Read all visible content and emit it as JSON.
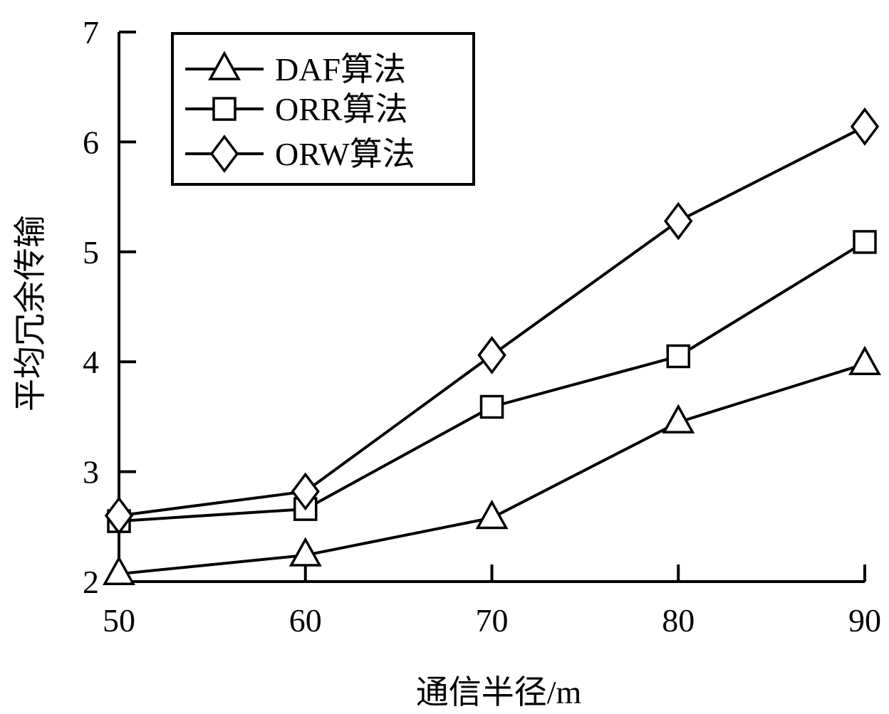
{
  "chart_data": {
    "type": "line",
    "xlabel": "通信半径/m",
    "ylabel": "平均冗余传输",
    "x": [
      50,
      60,
      70,
      80,
      90
    ],
    "xticks": [
      "50",
      "60",
      "70",
      "80",
      "90"
    ],
    "yticks": [
      "2",
      "3",
      "4",
      "5",
      "6",
      "7"
    ],
    "xlim": [
      50,
      90
    ],
    "ylim": [
      2,
      7
    ],
    "grid": false,
    "legend_position": "top-left",
    "series": [
      {
        "name": "DAF算法",
        "marker": "triangle",
        "values": [
          2.07,
          2.24,
          2.58,
          3.45,
          3.98
        ]
      },
      {
        "name": "ORR算法",
        "marker": "square",
        "values": [
          2.55,
          2.66,
          3.59,
          4.05,
          5.09
        ]
      },
      {
        "name": "ORW算法",
        "marker": "diamond",
        "values": [
          2.6,
          2.82,
          4.06,
          5.28,
          6.14
        ]
      }
    ],
    "colors": {
      "line": "#000000",
      "background": "#ffffff"
    }
  }
}
